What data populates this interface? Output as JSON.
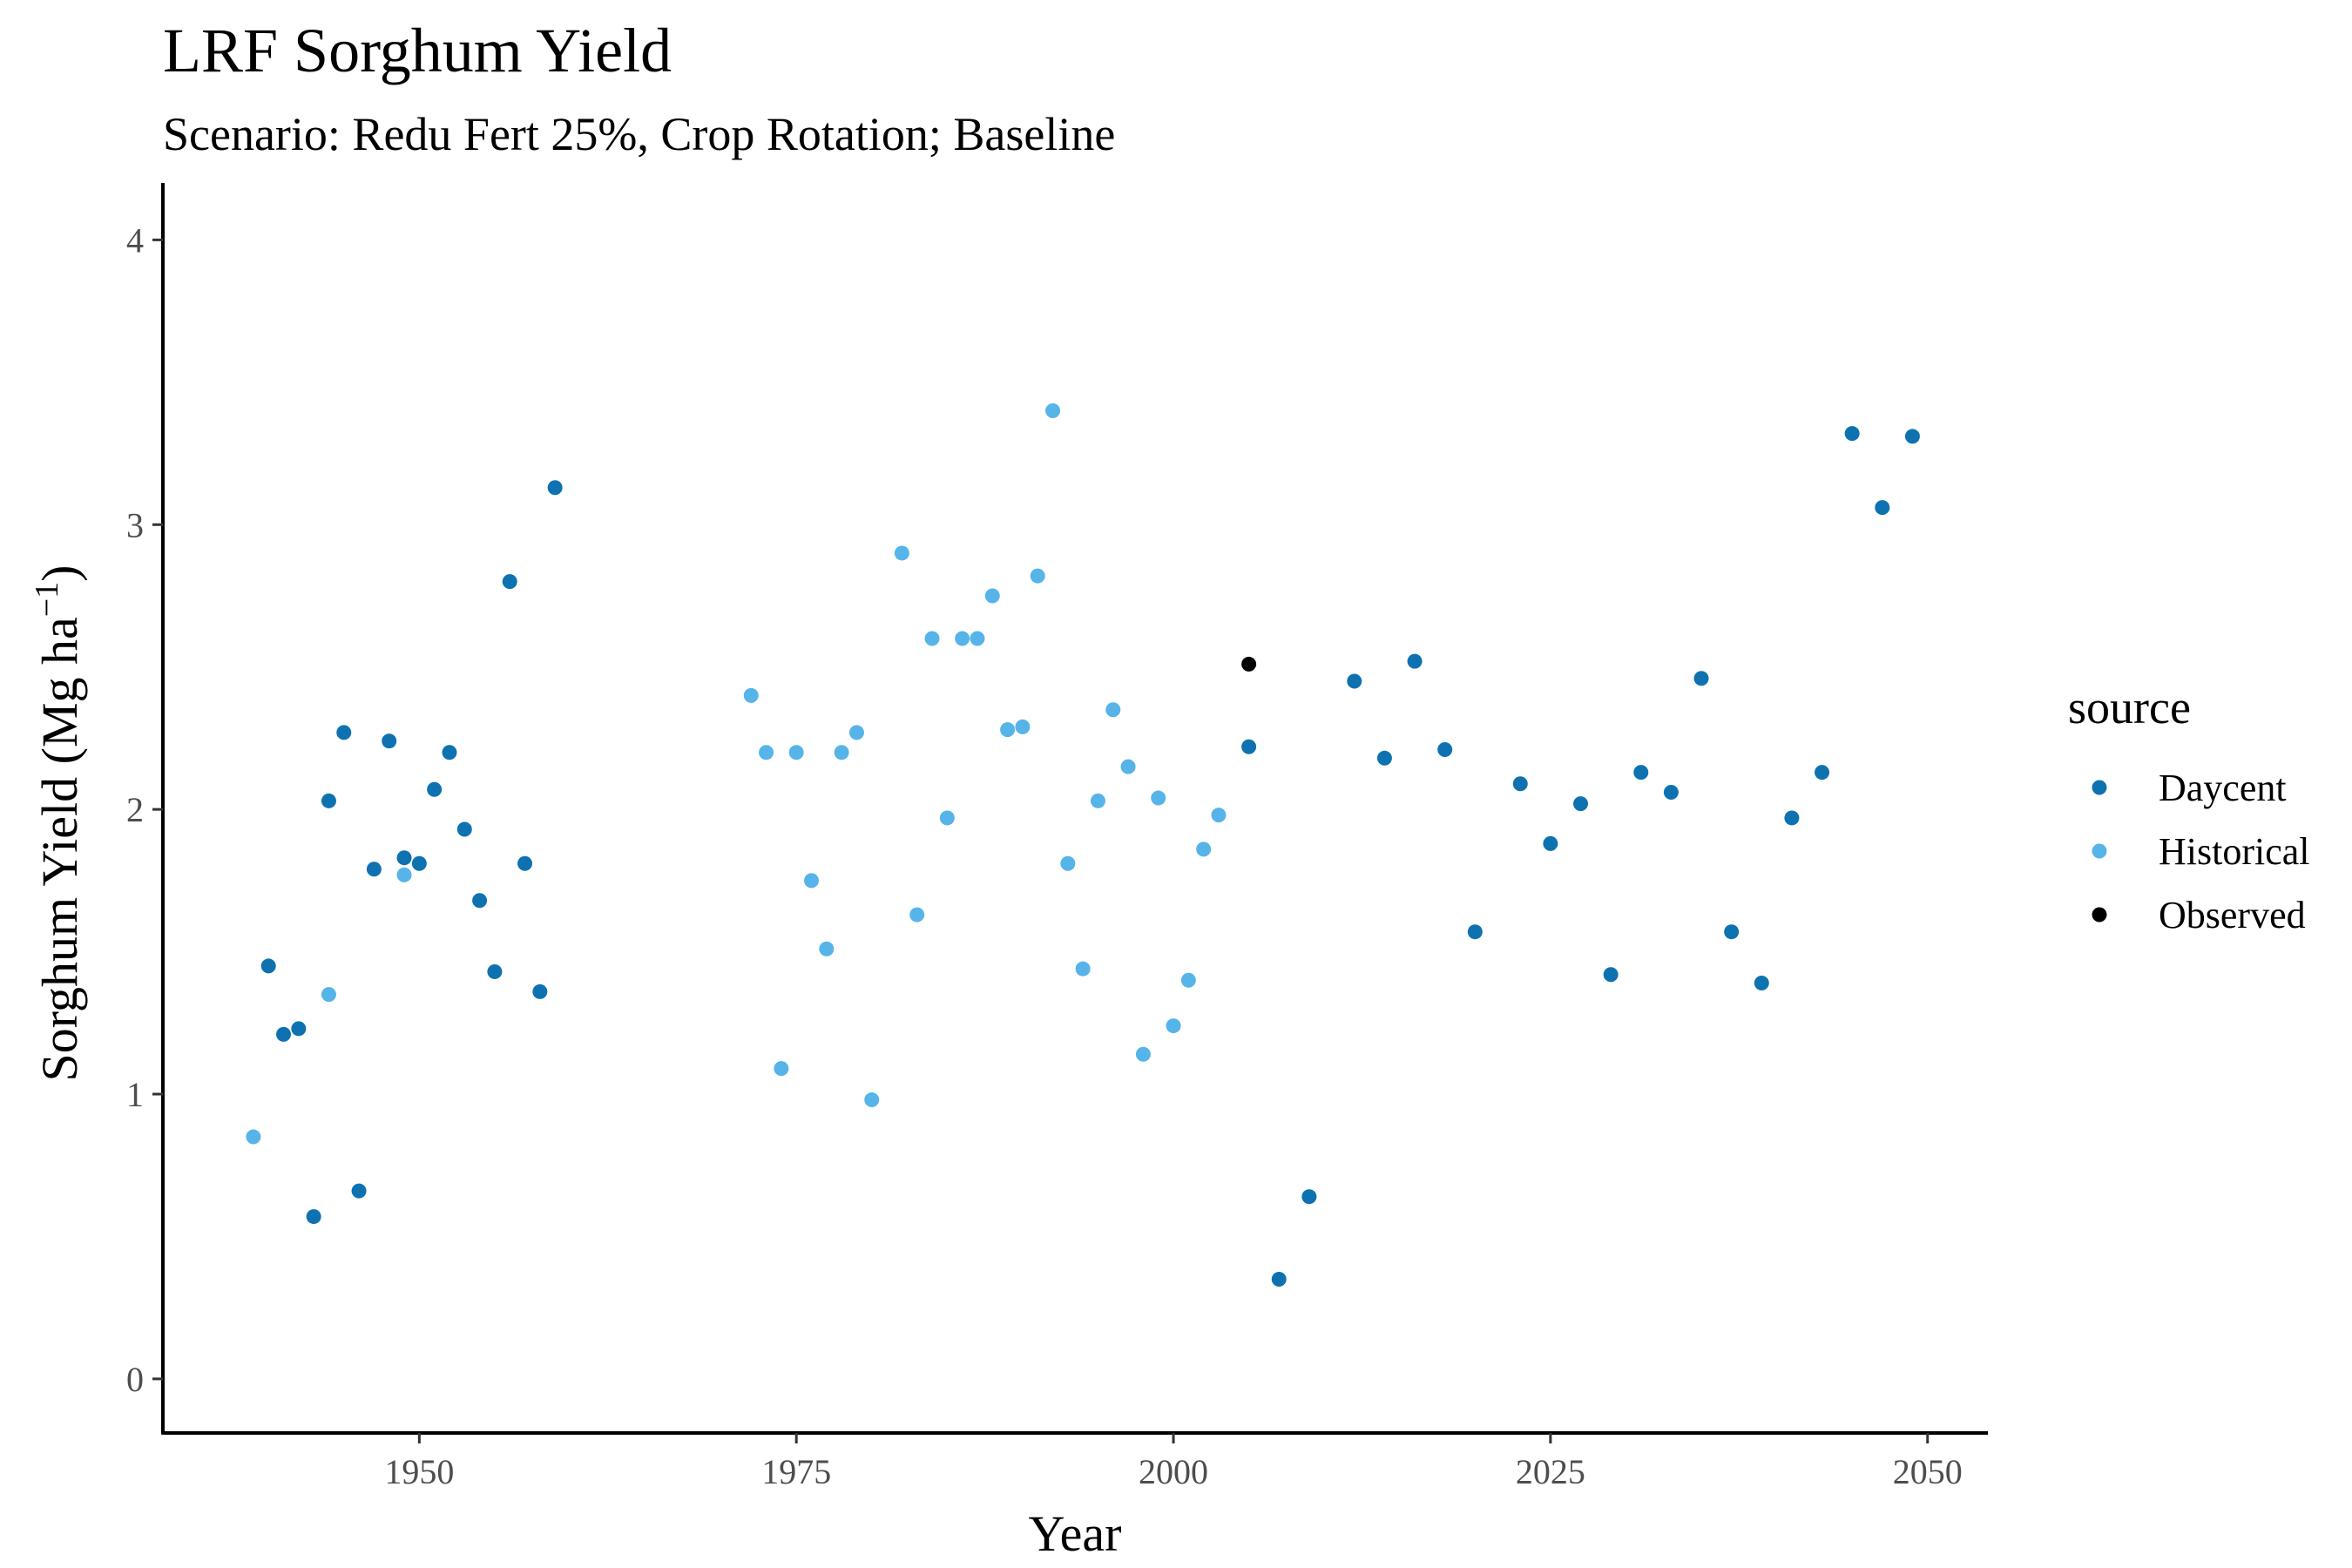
{
  "chart_data": {
    "type": "scatter",
    "title": "LRF Sorghum Yield",
    "subtitle": "Scenario: Redu Fert 25%, Crop Rotation; Baseline",
    "xlabel": "Year",
    "ylabel": "Sorghum Yield (Mg ha",
    "ylabel_superscript": "−1",
    "ylabel_close": ")",
    "xlim": [
      1933,
      2054
    ],
    "ylim": [
      -0.19,
      4.2
    ],
    "x_ticks": [
      1950,
      1975,
      2000,
      2025,
      2050
    ],
    "y_ticks": [
      0,
      1,
      2,
      3,
      4
    ],
    "grid": false,
    "legend_position": "right",
    "legend_title": "source",
    "series": [
      {
        "name": "Daycent",
        "color": "#0E72B0",
        "points": [
          [
            1940,
            1.45
          ],
          [
            1941,
            1.21
          ],
          [
            1942,
            1.23
          ],
          [
            1943,
            0.57
          ],
          [
            1944,
            2.03
          ],
          [
            1945,
            2.27
          ],
          [
            1946,
            0.66
          ],
          [
            1947,
            1.79
          ],
          [
            1948,
            2.24
          ],
          [
            1949,
            1.83
          ],
          [
            1950,
            1.81
          ],
          [
            1951,
            2.07
          ],
          [
            1952,
            2.2
          ],
          [
            1953,
            1.93
          ],
          [
            1954,
            1.68
          ],
          [
            1955,
            1.43
          ],
          [
            1956,
            2.8
          ],
          [
            1957,
            1.81
          ],
          [
            1958,
            1.36
          ],
          [
            1959,
            3.13
          ],
          [
            2005,
            2.22
          ],
          [
            2007,
            0.35
          ],
          [
            2009,
            0.64
          ],
          [
            2012,
            2.45
          ],
          [
            2014,
            2.18
          ],
          [
            2016,
            2.52
          ],
          [
            2018,
            2.21
          ],
          [
            2020,
            1.57
          ],
          [
            2023,
            2.09
          ],
          [
            2025,
            1.88
          ],
          [
            2027,
            2.02
          ],
          [
            2029,
            1.42
          ],
          [
            2031,
            2.13
          ],
          [
            2033,
            2.06
          ],
          [
            2035,
            2.46
          ],
          [
            2037,
            1.57
          ],
          [
            2039,
            1.39
          ],
          [
            2041,
            1.97
          ],
          [
            2043,
            2.13
          ],
          [
            2045,
            3.32
          ],
          [
            2047,
            3.06
          ],
          [
            2049,
            3.31
          ]
        ]
      },
      {
        "name": "Historical",
        "color": "#56B4E9",
        "points": [
          [
            1939,
            0.85
          ],
          [
            1944,
            1.35
          ],
          [
            1949,
            1.77
          ],
          [
            1972,
            2.4
          ],
          [
            1973,
            2.2
          ],
          [
            1974,
            1.09
          ],
          [
            1975,
            2.2
          ],
          [
            1976,
            1.75
          ],
          [
            1977,
            1.51
          ],
          [
            1978,
            2.2
          ],
          [
            1979,
            2.27
          ],
          [
            1980,
            0.98
          ],
          [
            1982,
            2.9
          ],
          [
            1983,
            1.63
          ],
          [
            1984,
            2.6
          ],
          [
            1985,
            1.97
          ],
          [
            1986,
            2.6
          ],
          [
            1987,
            2.6
          ],
          [
            1988,
            2.75
          ],
          [
            1989,
            2.28
          ],
          [
            1990,
            2.29
          ],
          [
            1991,
            2.82
          ],
          [
            1992,
            3.4
          ],
          [
            1993,
            1.81
          ],
          [
            1994,
            1.44
          ],
          [
            1995,
            2.03
          ],
          [
            1996,
            2.35
          ],
          [
            1997,
            2.15
          ],
          [
            1998,
            1.14
          ],
          [
            1999,
            2.04
          ],
          [
            2000,
            1.24
          ],
          [
            2001,
            1.4
          ],
          [
            2002,
            1.86
          ],
          [
            2003,
            1.98
          ]
        ]
      },
      {
        "name": "Observed",
        "color": "#000000",
        "points": [
          [
            2005,
            2.51
          ]
        ]
      }
    ]
  }
}
